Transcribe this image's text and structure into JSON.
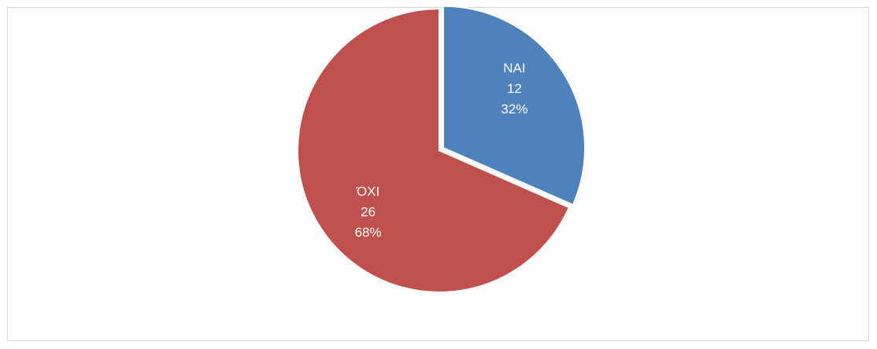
{
  "chart_data": {
    "type": "pie",
    "categories": [
      "ΝΑΙ",
      "ΌΧΙ"
    ],
    "values": [
      12,
      26
    ],
    "percent_labels": [
      "32%",
      "68%"
    ],
    "colors": [
      "#4f81bd",
      "#c0504d"
    ]
  }
}
